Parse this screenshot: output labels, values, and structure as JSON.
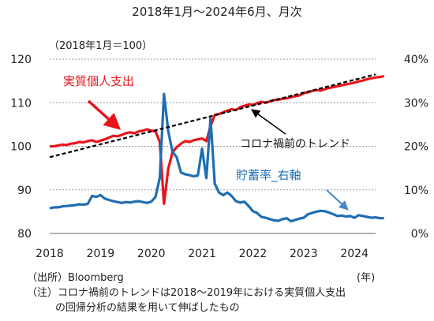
{
  "chart_data": {
    "type": "line",
    "title": "2018年1月～2024年6月、月次",
    "left_axis_unit": "（2018年1月＝100）",
    "x_ticks": [
      "2018",
      "2019",
      "2020",
      "2021",
      "2022",
      "2023",
      "2024"
    ],
    "x_unit": "(年)",
    "xlim": [
      "2018-01",
      "2024-06"
    ],
    "ylim_left": [
      80,
      120
    ],
    "yticks_left": [
      "80",
      "90",
      "100",
      "110",
      "120"
    ],
    "ylim_right": [
      0,
      40
    ],
    "yticks_right": [
      "0%",
      "10%",
      "20%",
      "30%",
      "40%"
    ],
    "grid": "horizontal dotted",
    "series": [
      {
        "name": "実質個人支出",
        "axis": "left",
        "color": "#e8141b",
        "start": "2018-01",
        "values": [
          100.0,
          100.0,
          100.2,
          100.4,
          100.3,
          100.6,
          100.7,
          101.0,
          100.9,
          101.2,
          101.4,
          101.0,
          101.3,
          101.6,
          102.0,
          102.4,
          102.3,
          102.6,
          103.0,
          103.2,
          103.0,
          103.4,
          103.6,
          103.9,
          103.6,
          103.4,
          101.0,
          86.8,
          94.8,
          98.6,
          99.8,
          100.6,
          101.2,
          101.0,
          101.4,
          101.6,
          101.8,
          101.2,
          104.6,
          107.2,
          107.4,
          107.8,
          108.2,
          108.5,
          108.3,
          109.0,
          109.3,
          109.6,
          109.5,
          109.9,
          110.2,
          110.0,
          110.3,
          110.6,
          110.7,
          110.9,
          111.0,
          111.3,
          111.5,
          111.7,
          112.2,
          112.4,
          112.7,
          112.9,
          112.8,
          113.1,
          113.4,
          113.6,
          113.8,
          114.0,
          114.2,
          114.4,
          114.6,
          114.9,
          115.1,
          115.4,
          115.6,
          115.8,
          115.9,
          116.1
        ]
      },
      {
        "name": "貯蓄率_右軸",
        "axis": "right",
        "color": "#1f6eb2",
        "start": "2018-01",
        "values": [
          5.8,
          6.0,
          6.0,
          6.2,
          6.3,
          6.4,
          6.5,
          6.7,
          6.6,
          6.8,
          8.6,
          8.4,
          8.8,
          8.0,
          7.7,
          7.4,
          7.2,
          7.0,
          7.2,
          7.1,
          7.3,
          7.4,
          7.2,
          7.0,
          7.3,
          8.4,
          12.8,
          32.0,
          23.5,
          18.8,
          17.5,
          14.0,
          13.6,
          13.4,
          13.1,
          13.3,
          19.5,
          12.7,
          26.4,
          11.4,
          9.4,
          8.8,
          9.4,
          8.6,
          7.4,
          7.1,
          7.3,
          6.3,
          5.1,
          4.7,
          3.8,
          3.6,
          3.3,
          3.0,
          2.9,
          3.3,
          3.5,
          2.8,
          3.1,
          3.4,
          3.6,
          4.4,
          4.7,
          5.0,
          5.2,
          5.1,
          4.8,
          4.4,
          4.0,
          4.1,
          3.9,
          4.0,
          3.6,
          4.2,
          4.0,
          3.8,
          3.6,
          3.7,
          3.5,
          3.5
        ]
      },
      {
        "name": "コロナ禍前のトレンド",
        "axis": "left",
        "color": "#000000",
        "style": "dashed",
        "endpoints": [
          {
            "x": "2018-01",
            "y": 97.5
          },
          {
            "x": "2024-06",
            "y": 116.5
          }
        ]
      }
    ],
    "annotations": [
      "実質個人支出",
      "コロナ禍前のトレンド",
      "貯蓄率_右軸"
    ]
  },
  "notes": {
    "source": "（出所）Bloomberg",
    "note_line1": "（注）コロナ禍前のトレンドは2018～2019年における実質個人支出",
    "note_line2": "の回帰分析の結果を用いて伸ばしたもの"
  }
}
